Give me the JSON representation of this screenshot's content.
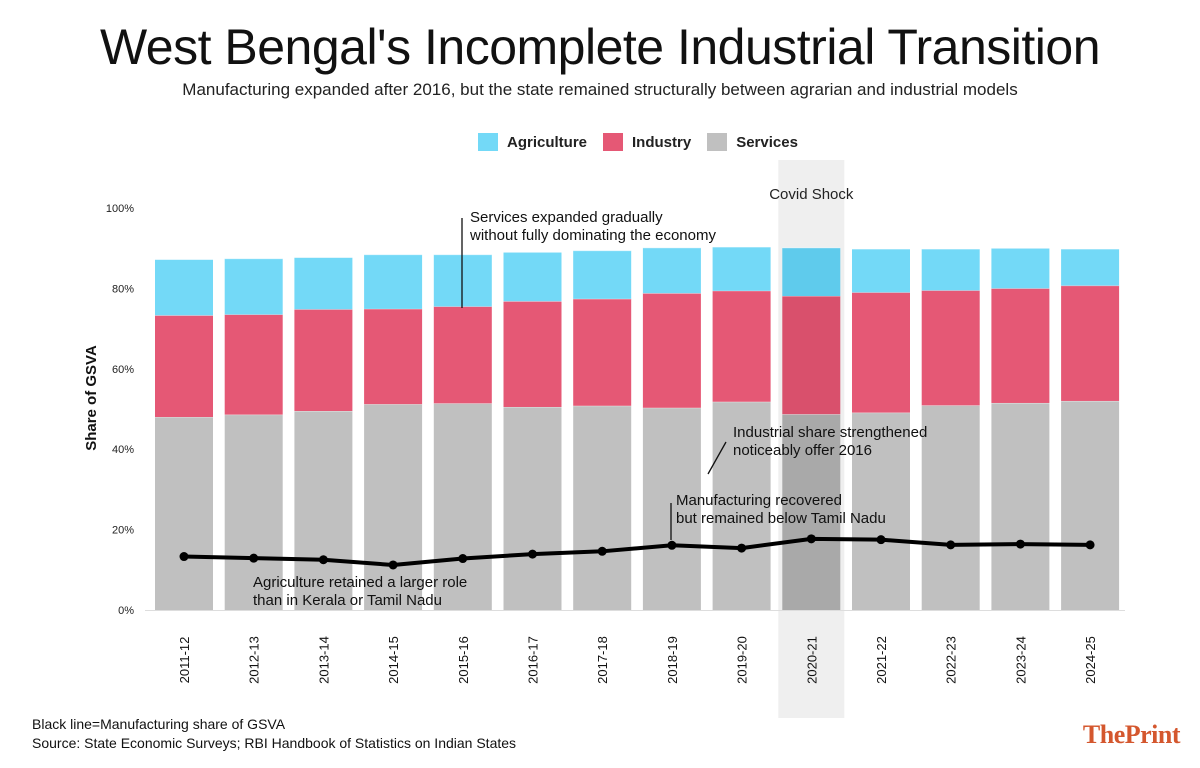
{
  "header": {
    "title": "West Bengal's Incomplete Industrial Transition",
    "subtitle": "Manufacturing expanded after 2016, but the state remained structurally between agrarian and industrial models"
  },
  "legend": [
    {
      "label": "Agriculture",
      "color": "#73d9f7"
    },
    {
      "label": "Industry",
      "color": "#e55875"
    },
    {
      "label": "Services",
      "color": "#c0c0c0"
    }
  ],
  "footer": {
    "note1": "Black line=Manufacturing share of GSVA",
    "note2": "Source: State Economic Surveys; RBI Handbook of Statistics on Indian States",
    "brand_the": "The",
    "brand_print": "Print"
  },
  "chart_data": {
    "type": "bar",
    "stacked": true,
    "ylabel": "Share of GSVA",
    "ylim": [
      0,
      100
    ],
    "yticks": [
      "0%",
      "20%",
      "40%",
      "60%",
      "80%",
      "100%"
    ],
    "categories": [
      "2011-12",
      "2012-13",
      "2013-14",
      "2014-15",
      "2015-16",
      "2016-17",
      "2017-18",
      "2018-19",
      "2019-20",
      "2020-21",
      "2021-22",
      "2022-23",
      "2023-24",
      "2024-25"
    ],
    "series": [
      {
        "name": "Services",
        "color": "#c0c0c0",
        "values": [
          48,
          48.6,
          49.5,
          51.2,
          51.4,
          50.5,
          50.8,
          50.3,
          51.8,
          48.7,
          49.1,
          50.9,
          51.5,
          52
        ]
      },
      {
        "name": "Industry",
        "color": "#e55875",
        "values": [
          25.3,
          24.9,
          25.3,
          23.7,
          24.1,
          26.3,
          26.6,
          28.5,
          27.6,
          29.4,
          29.9,
          28.6,
          28.5,
          28.7
        ]
      },
      {
        "name": "Agriculture",
        "color": "#73d9f7",
        "values": [
          13.9,
          13.9,
          12.9,
          13.5,
          12.9,
          12.2,
          12.0,
          11.3,
          10.9,
          12.0,
          10.8,
          10.3,
          10.0,
          9.1
        ]
      }
    ],
    "line": {
      "label": "Manufacturing share of GSVA",
      "color": "#000000",
      "values": [
        13.3,
        12.9,
        12.5,
        11.2,
        12.8,
        13.9,
        14.6,
        16.1,
        15.4,
        17.7,
        17.5,
        16.2,
        16.4,
        16.2
      ]
    },
    "highlight": {
      "category": "2020-21",
      "label": "Covid Shock"
    },
    "annotations": [
      {
        "text": [
          "Services expanded gradually",
          "without fully dominating the economy"
        ]
      },
      {
        "text": [
          "Industrial share strengthened",
          "noticeably offer 2016"
        ]
      },
      {
        "text": [
          "Manufacturing recovered",
          "but remained below Tamil Nadu"
        ]
      },
      {
        "text": [
          "Agriculture retained a larger role",
          "than in Kerala or Tamil Nadu"
        ]
      }
    ]
  }
}
